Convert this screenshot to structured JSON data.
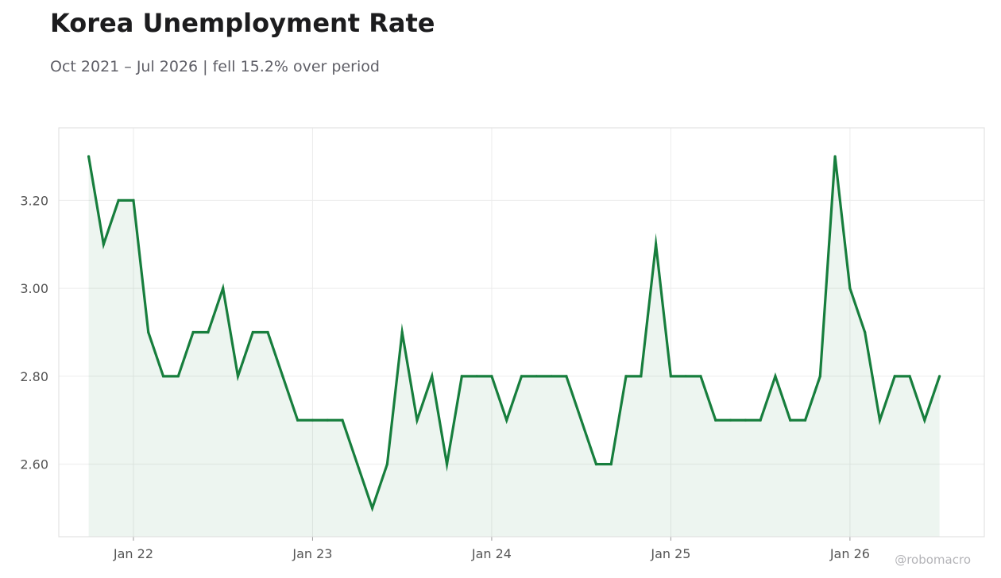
{
  "chart_data": {
    "type": "area",
    "title": "Korea Unemployment Rate",
    "subtitle": "Oct 2021 – Jul 2026 | fell 15.2% over period",
    "xlabel": "",
    "ylabel": "",
    "x": [
      "2021-10",
      "2021-11",
      "2021-12",
      "2022-01",
      "2022-02",
      "2022-03",
      "2022-04",
      "2022-05",
      "2022-06",
      "2022-07",
      "2022-08",
      "2022-09",
      "2022-10",
      "2022-11",
      "2022-12",
      "2023-01",
      "2023-02",
      "2023-03",
      "2023-04",
      "2023-05",
      "2023-06",
      "2023-07",
      "2023-08",
      "2023-09",
      "2023-10",
      "2023-11",
      "2023-12",
      "2024-01",
      "2024-02",
      "2024-03",
      "2024-04",
      "2024-05",
      "2024-06",
      "2024-07",
      "2024-08",
      "2024-09",
      "2024-10",
      "2024-11",
      "2024-12",
      "2025-01",
      "2025-02",
      "2025-03",
      "2025-04",
      "2025-05",
      "2025-06",
      "2025-07",
      "2025-08",
      "2025-09",
      "2025-10",
      "2025-11",
      "2025-12",
      "2026-01",
      "2026-02",
      "2026-03",
      "2026-04",
      "2026-05",
      "2026-06",
      "2026-07"
    ],
    "series": [
      {
        "values": [
          3.3,
          3.1,
          3.2,
          3.2,
          2.9,
          2.8,
          2.8,
          2.9,
          2.9,
          3.0,
          2.8,
          2.9,
          2.9,
          2.8,
          2.7,
          2.7,
          2.7,
          2.7,
          2.6,
          2.5,
          2.6,
          2.9,
          2.7,
          2.8,
          2.6,
          2.8,
          2.8,
          2.8,
          2.7,
          2.8,
          2.8,
          2.8,
          2.8,
          2.7,
          2.6,
          2.6,
          2.8,
          2.8,
          3.1,
          2.8,
          2.8,
          2.8,
          2.7,
          2.7,
          2.7,
          2.7,
          2.8,
          2.7,
          2.7,
          2.8,
          3.3,
          3.0,
          2.9,
          2.7,
          2.8,
          2.8,
          2.7,
          2.8
        ]
      }
    ],
    "x_ticks": [
      {
        "x": "2022-01",
        "label": "Jan 22"
      },
      {
        "x": "2023-01",
        "label": "Jan 23"
      },
      {
        "x": "2024-01",
        "label": "Jan 24"
      },
      {
        "x": "2025-01",
        "label": "Jan 25"
      },
      {
        "x": "2026-01",
        "label": "Jan 26"
      }
    ],
    "y_ticks": [
      {
        "value": 2.6,
        "label": "2.60"
      },
      {
        "value": 2.8,
        "label": "2.80"
      },
      {
        "value": 3.0,
        "label": "3.00"
      },
      {
        "value": 3.2,
        "label": "3.20"
      }
    ],
    "ylim": [
      2.435,
      3.365
    ],
    "xlim": [
      "2021-08",
      "2026-10"
    ],
    "grid": true,
    "legend": "none",
    "colors": {
      "line": "#177e3d",
      "fill": "#177e3d",
      "grid": "#ececec",
      "frame": "#dddddd",
      "tick_label": "#555555"
    },
    "watermark": "@robomacro"
  }
}
